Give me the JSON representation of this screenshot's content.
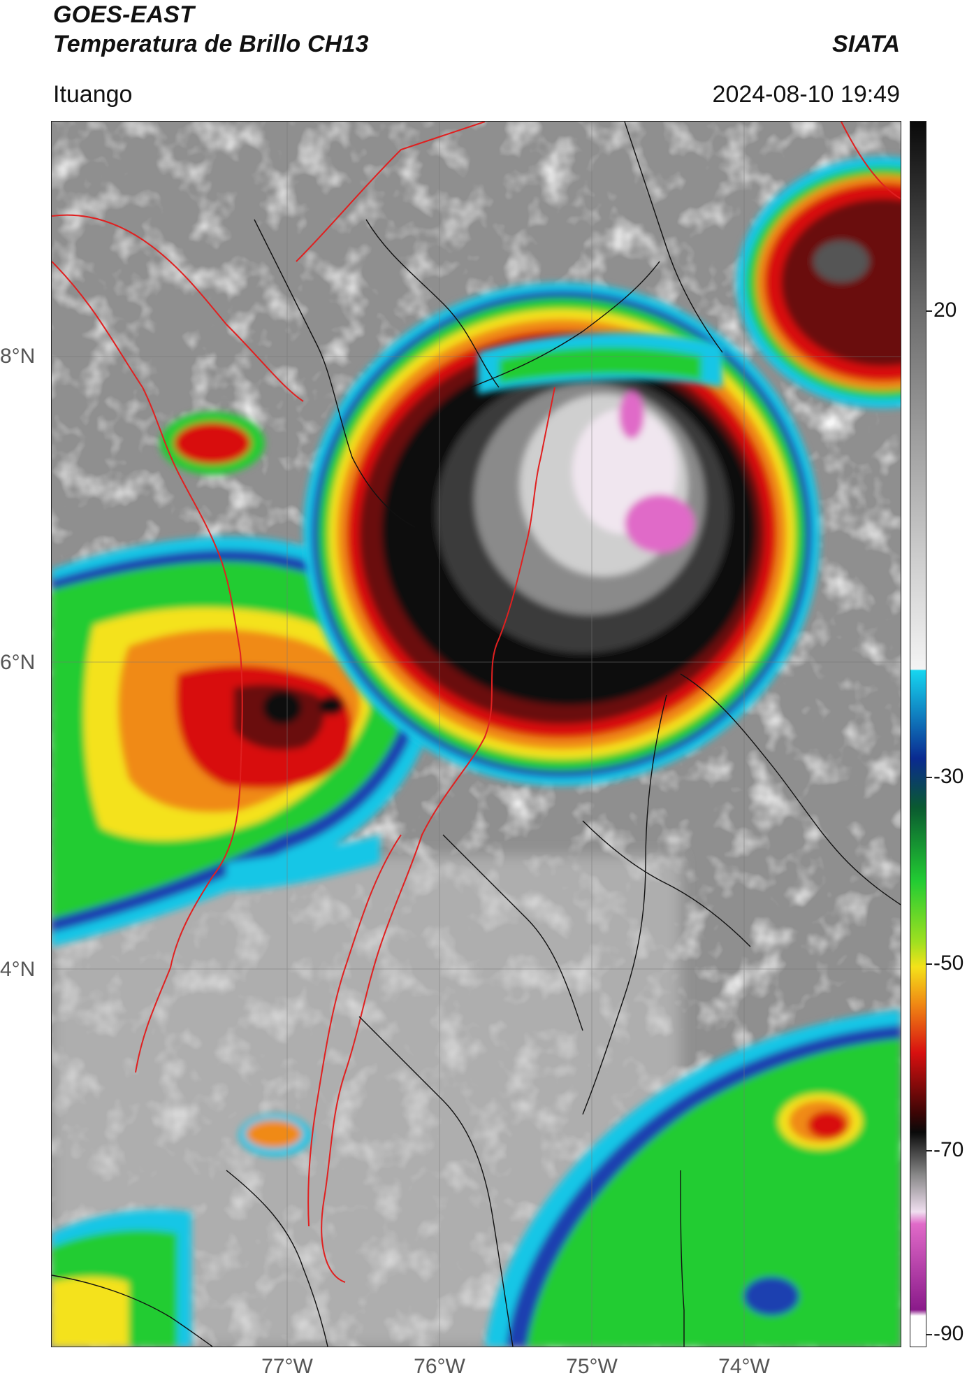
{
  "header": {
    "title_line1": "GOES-EAST",
    "title_line2": "Temperatura de Brillo CH13",
    "agency": "SIATA",
    "location": "Ituango",
    "datetime": "2024-08-10 19:49"
  },
  "axes": {
    "x_ticks": [
      "77°W",
      "76°W",
      "75°W",
      "74°W"
    ],
    "y_ticks": [
      "8°N",
      "6°N",
      "4°N"
    ]
  },
  "colorbar": {
    "ticks": [
      "20",
      "-30",
      "-50",
      "-70",
      "-90"
    ]
  },
  "colors": {
    "cloud_gray": "#9a9a9a",
    "cyan": "#16c6e6",
    "blue": "#1a3fb0",
    "green": "#22cc33",
    "yellow": "#f4e21a",
    "orange": "#f08a14",
    "red": "#d81010",
    "dark_red": "#6a0a0a",
    "black": "#0c0c0c",
    "magenta": "#e06ac8",
    "border_red": "#e02020",
    "border_black": "#111111"
  }
}
